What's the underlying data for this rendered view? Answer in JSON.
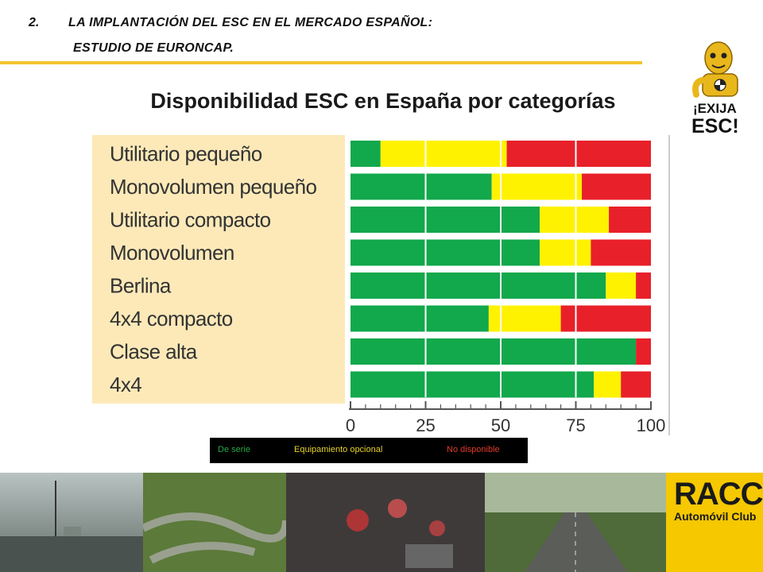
{
  "header": {
    "number": "2.",
    "line1": "LA IMPLANTACIÓN DEL ESC EN EL MERCADO ESPAÑOL:",
    "line2": "ESTUDIO DE EURONCAP."
  },
  "slide_title": "Disponibilidad ESC en España por categorías",
  "mascot": {
    "line1": "¡EXIJA",
    "line2": "ESC!",
    "icon": "crash-test-dummy-icon"
  },
  "legend": {
    "serie": "De serie",
    "opcional": "Equipamiento opcional",
    "no_disponible": "No disponible"
  },
  "brand": {
    "name": "RACC",
    "subtitle": "Automóvil Club",
    "color": "#f5c800"
  },
  "colors": {
    "de_serie": "#12a84c",
    "opcional": "#fff200",
    "no_disponible": "#e8202a",
    "label_panel": "#fde9b8"
  },
  "chart_data": {
    "type": "bar",
    "orientation": "horizontal",
    "stacked": true,
    "categories": [
      "Utilitario pequeño",
      "Monovolumen pequeño",
      "Utilitario compacto",
      "Monovolumen",
      "Berlina",
      "4x4 compacto",
      "Clase alta",
      "4x4"
    ],
    "series": [
      {
        "name": "De serie",
        "values": [
          10,
          47,
          63,
          63,
          85,
          46,
          95,
          81
        ]
      },
      {
        "name": "Equipamiento opcional",
        "values": [
          42,
          30,
          23,
          17,
          10,
          24,
          0,
          9
        ]
      },
      {
        "name": "No disponible",
        "values": [
          48,
          23,
          14,
          20,
          5,
          30,
          5,
          10
        ]
      }
    ],
    "xlim": [
      0,
      100
    ],
    "x_ticks": [
      "0",
      "25",
      "50",
      "75",
      "100"
    ],
    "title": "",
    "xlabel": "",
    "ylabel": ""
  }
}
